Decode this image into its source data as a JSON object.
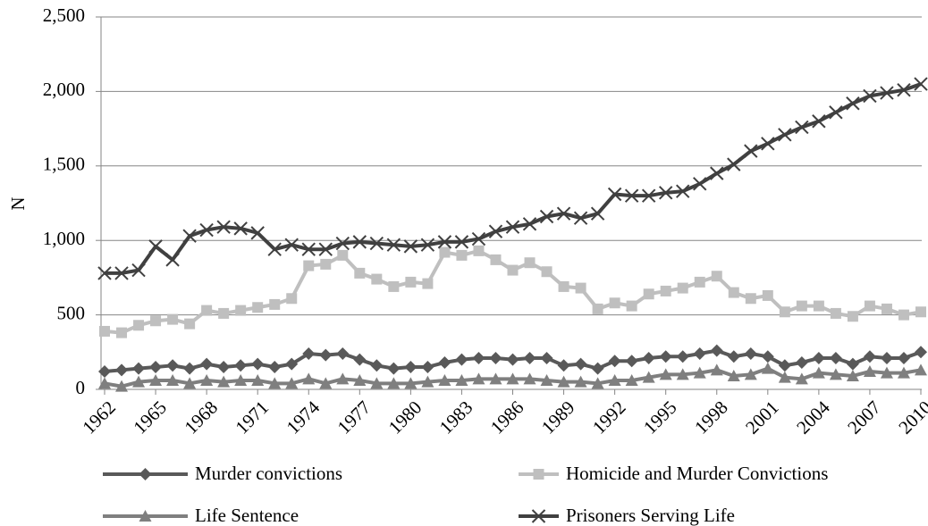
{
  "chart_data": {
    "type": "line",
    "y_label": "N",
    "x": [
      1962,
      1963,
      1964,
      1965,
      1966,
      1967,
      1968,
      1969,
      1970,
      1971,
      1972,
      1973,
      1974,
      1975,
      1976,
      1977,
      1978,
      1979,
      1980,
      1981,
      1982,
      1983,
      1984,
      1985,
      1986,
      1987,
      1988,
      1989,
      1990,
      1991,
      1992,
      1993,
      1994,
      1995,
      1996,
      1997,
      1998,
      1999,
      2000,
      2001,
      2002,
      2003,
      2004,
      2005,
      2006,
      2007,
      2008,
      2009,
      2010
    ],
    "xlim": [
      1962,
      2010
    ],
    "xticks": [
      1962,
      1965,
      1968,
      1971,
      1974,
      1977,
      1980,
      1983,
      1986,
      1989,
      1992,
      1995,
      1998,
      2001,
      2004,
      2007,
      2010
    ],
    "ylim": [
      0,
      2500
    ],
    "yticks": [
      0,
      {
        "value": 500,
        "label": "500"
      },
      {
        "value": 1000,
        "label": "1,000"
      },
      {
        "value": 1500,
        "label": "1,500"
      },
      {
        "value": 2000,
        "label": "2,000"
      },
      {
        "value": 2500,
        "label": "2,500"
      }
    ],
    "grid": true,
    "legend": "bottom",
    "series": [
      {
        "name": "Murder convictions",
        "color": "#595959",
        "marker": "diamond",
        "values": [
          120,
          130,
          140,
          150,
          160,
          140,
          170,
          150,
          160,
          170,
          150,
          170,
          240,
          230,
          240,
          200,
          160,
          140,
          150,
          150,
          180,
          200,
          210,
          210,
          200,
          210,
          210,
          160,
          170,
          140,
          190,
          190,
          210,
          220,
          220,
          240,
          260,
          220,
          240,
          220,
          160,
          180,
          210,
          210,
          170,
          220,
          210,
          210,
          250
        ]
      },
      {
        "name": "Homicide and Murder Convictions",
        "color": "#bfbfbf",
        "marker": "square",
        "values": [
          390,
          380,
          430,
          460,
          470,
          440,
          530,
          510,
          530,
          550,
          570,
          610,
          830,
          840,
          900,
          780,
          740,
          690,
          720,
          710,
          920,
          900,
          930,
          870,
          800,
          850,
          790,
          690,
          680,
          540,
          580,
          560,
          640,
          660,
          680,
          720,
          760,
          650,
          610,
          630,
          520,
          560,
          560,
          510,
          490,
          560,
          540,
          500,
          520
        ]
      },
      {
        "name": "Life Sentence",
        "color": "#7f7f7f",
        "marker": "triangle",
        "values": [
          40,
          20,
          50,
          60,
          60,
          40,
          60,
          50,
          60,
          60,
          40,
          40,
          70,
          40,
          70,
          60,
          40,
          40,
          40,
          50,
          60,
          60,
          70,
          70,
          70,
          70,
          60,
          50,
          50,
          40,
          60,
          60,
          80,
          100,
          100,
          110,
          130,
          90,
          100,
          140,
          80,
          70,
          110,
          100,
          90,
          120,
          110,
          110,
          130
        ]
      },
      {
        "name": "Prisoners Serving Life",
        "color": "#404040",
        "marker": "x",
        "values": [
          780,
          780,
          800,
          960,
          870,
          1030,
          1070,
          1090,
          1080,
          1050,
          940,
          970,
          940,
          940,
          980,
          990,
          980,
          970,
          960,
          970,
          990,
          990,
          1010,
          1060,
          1090,
          1110,
          1160,
          1180,
          1150,
          1180,
          1310,
          1300,
          1300,
          1320,
          1330,
          1380,
          1450,
          1510,
          1600,
          1650,
          1710,
          1760,
          1800,
          1860,
          1920,
          1970,
          1990,
          2010,
          2050
        ]
      }
    ]
  }
}
